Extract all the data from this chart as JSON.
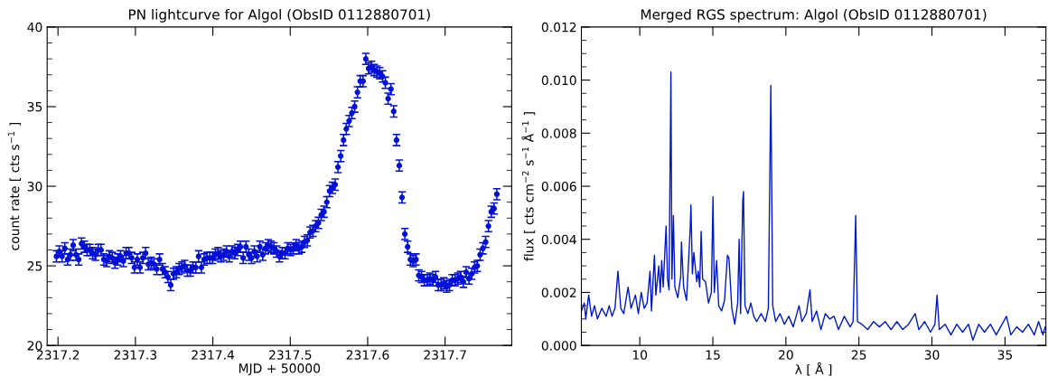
{
  "chart_data": [
    {
      "type": "scatter",
      "title": "PN lightcurve for Algol (ObsID 0112880701)",
      "xlabel": "MJD + 50000",
      "ylabel": "count rate [ cts s$^{−1}$ ]",
      "marker": "circle",
      "grid": false,
      "legend": false,
      "xlim": [
        2317.186,
        2317.786
      ],
      "ylim": [
        20,
        40
      ],
      "xticks": [
        {
          "value": 2317.2,
          "label": "2317.2"
        },
        {
          "value": 2317.3,
          "label": "2317.3"
        },
        {
          "value": 2317.4,
          "label": "2317.4"
        },
        {
          "value": 2317.5,
          "label": "2317.5"
        },
        {
          "value": 2317.6,
          "label": "2317.6"
        },
        {
          "value": 2317.7,
          "label": "2317.7"
        }
      ],
      "yticks": [
        20,
        {
          "value": 21,
          "label": null
        },
        {
          "value": 22,
          "label": null
        },
        {
          "value": 23,
          "label": null
        },
        {
          "value": 24,
          "label": null
        },
        25,
        {
          "value": 26,
          "label": null
        },
        {
          "value": 27,
          "label": null
        },
        {
          "value": 28,
          "label": null
        },
        {
          "value": 29,
          "label": null
        },
        30,
        {
          "value": 31,
          "label": null
        },
        {
          "value": 32,
          "label": null
        },
        {
          "value": 33,
          "label": null
        },
        {
          "value": 34,
          "label": null
        },
        35,
        {
          "value": 36,
          "label": null
        },
        {
          "value": 37,
          "label": null
        },
        {
          "value": 38,
          "label": null
        },
        {
          "value": 39,
          "label": null
        },
        40
      ],
      "series": [
        {
          "color": "#0010d8",
          "x": [
            2317.198,
            2317.2016,
            2317.2052,
            2317.2088,
            2317.2124,
            2317.216,
            2317.2196,
            2317.2232,
            2317.2268,
            2317.2304,
            2317.234,
            2317.2376,
            2317.2412,
            2317.2448,
            2317.2484,
            2317.252,
            2317.2556,
            2317.2592,
            2317.2628,
            2317.2664,
            2317.27,
            2317.2736,
            2317.2772,
            2317.2808,
            2317.2844,
            2317.288,
            2317.2916,
            2317.2952,
            2317.2988,
            2317.3024,
            2317.306,
            2317.3096,
            2317.3132,
            2317.3168,
            2317.3204,
            2317.324,
            2317.3276,
            2317.3312,
            2317.3348,
            2317.3384,
            2317.342,
            2317.3456,
            2317.3492,
            2317.3528,
            2317.3564,
            2317.36,
            2317.3636,
            2317.3672,
            2317.3708,
            2317.3744,
            2317.378,
            2317.3816,
            2317.3852,
            2317.3888,
            2317.3924,
            2317.396,
            2317.3996,
            2317.4032,
            2317.4068,
            2317.4104,
            2317.414,
            2317.4176,
            2317.4212,
            2317.4248,
            2317.4284,
            2317.432,
            2317.4356,
            2317.4392,
            2317.4428,
            2317.4464,
            2317.45,
            2317.4536,
            2317.4572,
            2317.4608,
            2317.4644,
            2317.468,
            2317.4716,
            2317.4752,
            2317.4788,
            2317.4824,
            2317.486,
            2317.4896,
            2317.4932,
            2317.4968,
            2317.5004,
            2317.504,
            2317.5076,
            2317.5112,
            2317.5148,
            2317.5184,
            2317.522,
            2317.5256,
            2317.5292,
            2317.5328,
            2317.5364,
            2317.54,
            2317.5436,
            2317.5472,
            2317.5508,
            2317.5544,
            2317.558,
            2317.5616,
            2317.5652,
            2317.5688,
            2317.5724,
            2317.576,
            2317.5796,
            2317.5832,
            2317.5868,
            2317.5904,
            2317.594,
            2317.5976,
            2317.6012,
            2317.6048,
            2317.6084,
            2317.612,
            2317.6156,
            2317.6192,
            2317.6228,
            2317.6264,
            2317.63,
            2317.6336,
            2317.6372,
            2317.6408,
            2317.6444,
            2317.648,
            2317.6516,
            2317.6552,
            2317.6588,
            2317.6624,
            2317.666,
            2317.6696,
            2317.6732,
            2317.6768,
            2317.6804,
            2317.684,
            2317.6876,
            2317.6912,
            2317.6948,
            2317.6984,
            2317.702,
            2317.7056,
            2317.7092,
            2317.7128,
            2317.7164,
            2317.72,
            2317.7236,
            2317.7272,
            2317.7308,
            2317.7344,
            2317.738,
            2317.7416,
            2317.7452,
            2317.7488,
            2317.7524,
            2317.756,
            2317.7596,
            2317.7632,
            2317.7668
          ],
          "values": [
            25.6,
            25.9,
            25.6,
            26.1,
            25.4,
            25.7,
            26.3,
            25.7,
            25.4,
            26.4,
            26.2,
            26.0,
            26.0,
            25.8,
            25.7,
            26.0,
            26.0,
            25.4,
            25.3,
            25.6,
            25.5,
            25.2,
            25.4,
            25.6,
            25.3,
            25.8,
            25.8,
            25.5,
            24.9,
            25.4,
            24.9,
            25.5,
            25.8,
            25.1,
            25.2,
            25.1,
            24.8,
            25.4,
            24.8,
            24.6,
            24.3,
            23.8,
            24.5,
            24.6,
            24.8,
            24.9,
            25.0,
            24.7,
            24.7,
            24.9,
            24.9,
            25.6,
            24.9,
            25.4,
            25.5,
            25.5,
            25.5,
            25.7,
            25.8,
            25.6,
            25.7,
            25.9,
            25.6,
            25.9,
            25.8,
            26.0,
            26.2,
            25.5,
            26.2,
            25.7,
            25.5,
            25.9,
            25.6,
            26.2,
            25.7,
            26.1,
            26.3,
            26.2,
            26.1,
            25.9,
            25.6,
            25.8,
            25.8,
            26.1,
            26.0,
            26.1,
            26.3,
            26.1,
            26.2,
            26.5,
            26.6,
            27.1,
            27.2,
            27.5,
            27.7,
            28.2,
            28.4,
            29.0,
            29.7,
            29.9,
            30.1,
            31.2,
            31.9,
            32.9,
            33.6,
            34.1,
            34.6,
            35.0,
            35.9,
            36.6,
            36.6,
            38.0,
            37.4,
            37.5,
            37.3,
            37.2,
            37.1,
            36.9,
            36.5,
            35.5,
            36.1,
            34.7,
            32.9,
            31.3,
            29.3,
            27.0,
            26.2,
            25.4,
            25.3,
            25.4,
            24.4,
            24.3,
            24.1,
            24.1,
            24.2,
            24.1,
            24.3,
            23.8,
            23.8,
            23.9,
            23.7,
            23.8,
            24.1,
            24.1,
            24.2,
            24.3,
            24.0,
            24.6,
            24.2,
            24.5,
            24.9,
            25.0,
            25.7,
            26.1,
            26.5,
            27.5,
            28.4,
            28.6,
            29.5
          ],
          "errors": [
            0.35,
            0.35,
            0.35,
            0.35,
            0.35,
            0.35,
            0.35,
            0.35,
            0.35,
            0.35,
            0.35,
            0.35,
            0.35,
            0.35,
            0.35,
            0.35,
            0.35,
            0.35,
            0.35,
            0.35,
            0.35,
            0.35,
            0.35,
            0.35,
            0.35,
            0.35,
            0.35,
            0.35,
            0.35,
            0.35,
            0.35,
            0.35,
            0.35,
            0.35,
            0.35,
            0.35,
            0.35,
            0.35,
            0.35,
            0.35,
            0.35,
            0.35,
            0.35,
            0.35,
            0.35,
            0.35,
            0.35,
            0.35,
            0.35,
            0.35,
            0.35,
            0.35,
            0.35,
            0.35,
            0.35,
            0.35,
            0.35,
            0.35,
            0.35,
            0.35,
            0.35,
            0.35,
            0.35,
            0.35,
            0.35,
            0.35,
            0.35,
            0.35,
            0.35,
            0.35,
            0.35,
            0.35,
            0.35,
            0.35,
            0.35,
            0.35,
            0.35,
            0.35,
            0.35,
            0.35,
            0.35,
            0.35,
            0.35,
            0.35,
            0.35,
            0.35,
            0.35,
            0.35,
            0.35,
            0.35,
            0.35,
            0.35,
            0.35,
            0.35,
            0.35,
            0.35,
            0.35,
            0.35,
            0.35,
            0.35,
            0.35,
            0.35,
            0.35,
            0.35,
            0.35,
            0.35,
            0.35,
            0.35,
            0.35,
            0.35,
            0.35,
            0.35,
            0.35,
            0.35,
            0.35,
            0.35,
            0.35,
            0.35,
            0.35,
            0.35,
            0.35,
            0.35,
            0.35,
            0.35,
            0.35,
            0.35,
            0.35,
            0.35,
            0.35,
            0.35,
            0.35,
            0.35,
            0.35,
            0.35,
            0.35,
            0.35,
            0.35,
            0.35,
            0.35,
            0.35,
            0.35,
            0.35,
            0.35,
            0.35,
            0.35,
            0.35,
            0.35,
            0.35,
            0.35,
            0.35,
            0.35,
            0.35,
            0.35,
            0.35,
            0.35,
            0.35,
            0.35,
            0.35,
            0.35
          ]
        }
      ]
    },
    {
      "type": "line",
      "title": "Merged RGS spectrum: Algol (ObsID 0112880701)",
      "xlabel": "λ [ Å ]",
      "ylabel": "flux [ cts cm$^{−2}$ s$^{−1}$ Å$^{−1}$ ]",
      "marker": "none",
      "line_style": "solid",
      "grid": false,
      "legend": false,
      "xlim": [
        6,
        37.8
      ],
      "ylim": [
        0,
        0.012
      ],
      "xticks": [
        10,
        15,
        20,
        25,
        30,
        35
      ],
      "yticks": [
        {
          "value": 0,
          "label": "0.000"
        },
        {
          "value": 0.0005,
          "label": null
        },
        {
          "value": 0.001,
          "label": null
        },
        {
          "value": 0.0015,
          "label": null
        },
        {
          "value": 0.002,
          "label": "0.002"
        },
        {
          "value": 0.0025,
          "label": null
        },
        {
          "value": 0.003,
          "label": null
        },
        {
          "value": 0.0035,
          "label": null
        },
        {
          "value": 0.004,
          "label": "0.004"
        },
        {
          "value": 0.0045,
          "label": null
        },
        {
          "value": 0.005,
          "label": null
        },
        {
          "value": 0.0055,
          "label": null
        },
        {
          "value": 0.006,
          "label": "0.006"
        },
        {
          "value": 0.0065,
          "label": null
        },
        {
          "value": 0.007,
          "label": null
        },
        {
          "value": 0.0075,
          "label": null
        },
        {
          "value": 0.008,
          "label": "0.008"
        },
        {
          "value": 0.0085,
          "label": null
        },
        {
          "value": 0.009,
          "label": null
        },
        {
          "value": 0.0095,
          "label": null
        },
        {
          "value": 0.01,
          "label": "0.010"
        },
        {
          "value": 0.0105,
          "label": null
        },
        {
          "value": 0.011,
          "label": null
        },
        {
          "value": 0.0115,
          "label": null
        },
        {
          "value": 0.012,
          "label": "0.012"
        }
      ],
      "series": [
        {
          "color": "#0018cc",
          "x": [
            6.0,
            6.2,
            6.3,
            6.5,
            6.7,
            6.9,
            7.1,
            7.4,
            7.7,
            7.9,
            8.1,
            8.3,
            8.5,
            8.7,
            8.9,
            9.2,
            9.4,
            9.7,
            9.9,
            10.1,
            10.3,
            10.5,
            10.7,
            10.8,
            11.0,
            11.1,
            11.3,
            11.4,
            11.5,
            11.6,
            11.8,
            11.9,
            12.0,
            12.13,
            12.2,
            12.3,
            12.4,
            12.6,
            12.8,
            12.85,
            13.0,
            13.2,
            13.45,
            13.5,
            13.6,
            13.7,
            13.9,
            14.0,
            14.1,
            14.2,
            14.3,
            14.5,
            14.7,
            14.9,
            15.01,
            15.1,
            15.26,
            15.4,
            15.6,
            15.8,
            16.0,
            16.1,
            16.3,
            16.5,
            16.7,
            16.8,
            16.9,
            17.05,
            17.1,
            17.2,
            17.4,
            17.6,
            17.8,
            18.0,
            18.3,
            18.6,
            18.8,
            18.97,
            19.1,
            19.3,
            19.6,
            19.9,
            20.2,
            20.5,
            20.9,
            21.1,
            21.4,
            21.65,
            21.8,
            22.1,
            22.4,
            22.7,
            23.0,
            23.3,
            23.6,
            24.0,
            24.4,
            24.6,
            24.78,
            24.9,
            25.2,
            25.6,
            26.0,
            26.4,
            26.8,
            27.2,
            27.6,
            28.0,
            28.4,
            28.85,
            29.1,
            29.5,
            29.9,
            30.2,
            30.35,
            30.5,
            30.9,
            31.3,
            31.7,
            32.1,
            32.5,
            32.8,
            33.2,
            33.6,
            34.0,
            34.4,
            34.8,
            35.1,
            35.4,
            35.8,
            36.2,
            36.6,
            37.0,
            37.3,
            37.6,
            37.75
          ],
          "values": [
            0.0013,
            0.0016,
            0.001,
            0.0019,
            0.0011,
            0.0015,
            0.001,
            0.0014,
            0.0011,
            0.0015,
            0.0011,
            0.0014,
            0.0028,
            0.0014,
            0.0012,
            0.0022,
            0.0014,
            0.0019,
            0.0012,
            0.002,
            0.0014,
            0.0016,
            0.0028,
            0.0013,
            0.0034,
            0.0019,
            0.003,
            0.002,
            0.0032,
            0.0022,
            0.0045,
            0.0025,
            0.0021,
            0.0103,
            0.0025,
            0.0049,
            0.0022,
            0.0018,
            0.0026,
            0.0039,
            0.0022,
            0.0017,
            0.0044,
            0.0053,
            0.0027,
            0.0035,
            0.0024,
            0.0028,
            0.0022,
            0.0043,
            0.0025,
            0.0024,
            0.0016,
            0.002,
            0.0056,
            0.002,
            0.0032,
            0.0015,
            0.0013,
            0.0017,
            0.0034,
            0.0033,
            0.0014,
            0.0008,
            0.0016,
            0.004,
            0.0012,
            0.0055,
            0.0058,
            0.0015,
            0.0012,
            0.0016,
            0.0011,
            0.0009,
            0.0012,
            0.0009,
            0.0014,
            0.0098,
            0.0015,
            0.0009,
            0.0012,
            0.0008,
            0.0011,
            0.0007,
            0.0015,
            0.0009,
            0.0012,
            0.0021,
            0.0009,
            0.0013,
            0.0006,
            0.0012,
            0.001,
            0.0011,
            0.0006,
            0.0011,
            0.0007,
            0.0009,
            0.0049,
            0.0009,
            0.0008,
            0.0006,
            0.0009,
            0.0007,
            0.0009,
            0.0006,
            0.0009,
            0.0006,
            0.0008,
            0.0012,
            0.0006,
            0.0009,
            0.0005,
            0.0008,
            0.0019,
            0.0006,
            0.0008,
            0.0004,
            0.0008,
            0.0005,
            0.0008,
            0.0002,
            0.0008,
            0.0005,
            0.0008,
            0.0004,
            0.0008,
            0.0011,
            0.0004,
            0.0007,
            0.0005,
            0.0008,
            0.0004,
            0.0009,
            0.0004,
            0.0007
          ]
        }
      ]
    }
  ]
}
